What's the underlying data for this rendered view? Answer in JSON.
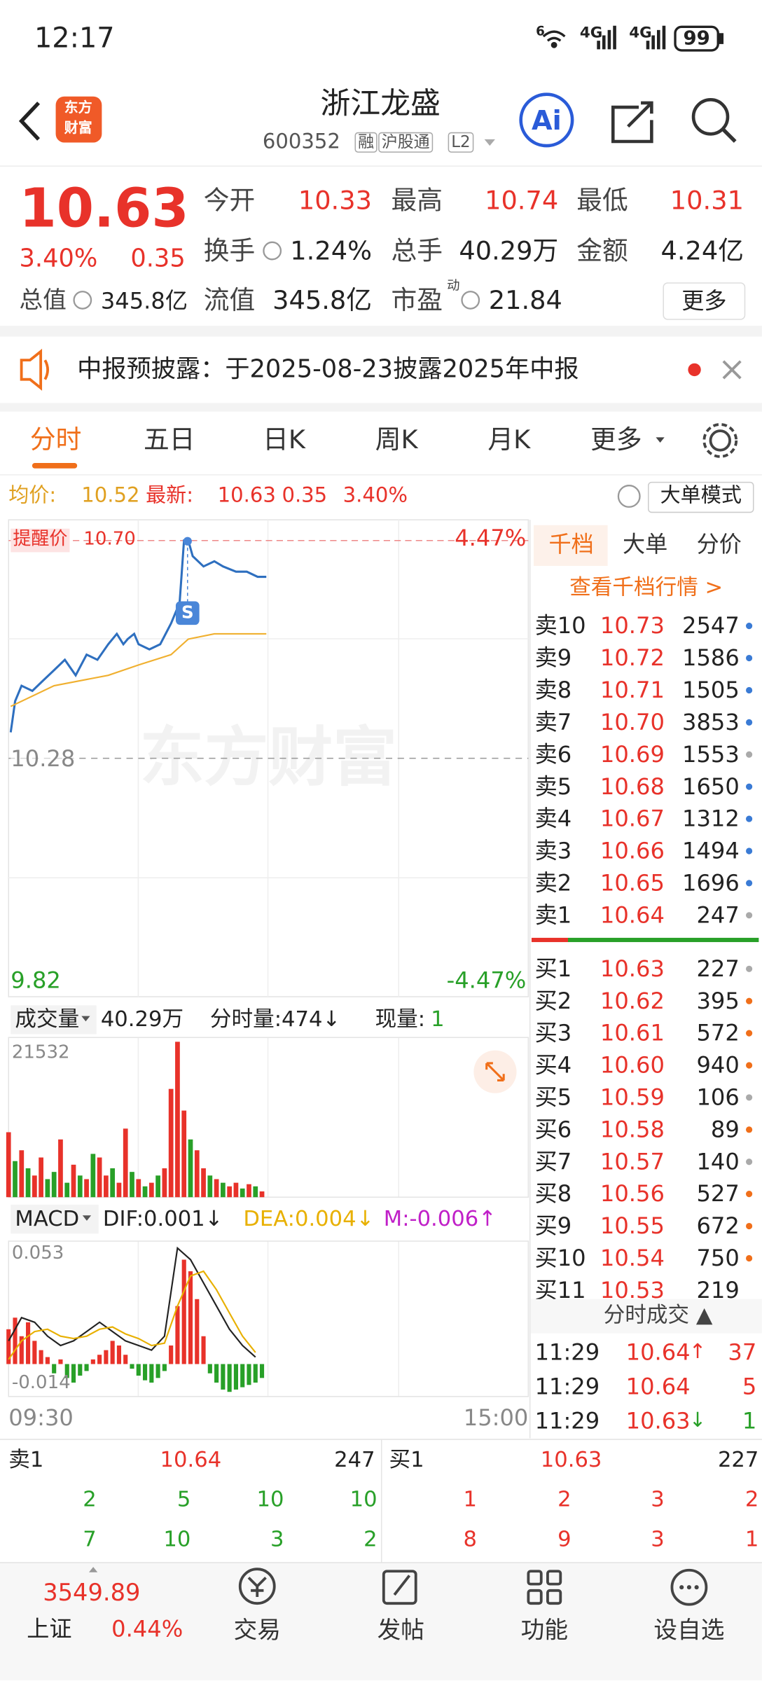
{
  "status": {
    "time": "12:17",
    "signal": [
      "6",
      "4G",
      "4G"
    ],
    "battery": "99"
  },
  "header": {
    "logo": [
      "东方",
      "财富"
    ],
    "title": "浙江龙盛",
    "code": "600352",
    "tags": [
      "融",
      "沪股通",
      "L2"
    ]
  },
  "quote": {
    "price": "10.63",
    "change_pct": "3.40%",
    "change": "0.35",
    "fields": [
      {
        "label": "今开",
        "value": "10.33"
      },
      {
        "label": "最高",
        "value": "10.74"
      },
      {
        "label": "最低",
        "value": "10.31"
      },
      {
        "label": "换手",
        "value": "1.24%"
      },
      {
        "label": "总手",
        "value": "40.29万"
      },
      {
        "label": "金额",
        "value": "4.24亿"
      },
      {
        "label": "总值",
        "value": "345.8亿"
      },
      {
        "label": "流值",
        "value": "345.8亿"
      },
      {
        "label": "市盈",
        "sup": "动",
        "value": "21.84"
      }
    ],
    "more": "更多"
  },
  "notice": "中报预披露：于2025-08-23披露2025年中报",
  "tabs": [
    "分时",
    "五日",
    "日K",
    "周K",
    "月K",
    "更多"
  ],
  "info": {
    "avg_label": "均价:",
    "avg": "10.52",
    "last_label": "最新:",
    "last": "10.63",
    "change": "0.35",
    "change_pct": "3.40%",
    "mode": "大单模式"
  },
  "chart_data": [
    {
      "type": "line",
      "watermark": "东方财富",
      "signal": "S",
      "xlim": [
        0,
        240
      ],
      "xticks": [
        {
          "value": 0,
          "label": "09:30"
        },
        {
          "value": 240,
          "label": "15:00"
        }
      ],
      "ylim": [
        9.82,
        10.74
      ],
      "yticks": [
        9.82,
        10.28
      ],
      "y2lim": [
        -4.47,
        4.47
      ],
      "y2ticks": [
        {
          "value": 4.47,
          "label": "4.47%"
        },
        {
          "value": -4.47,
          "label": "-4.47%"
        }
      ],
      "reminder": {
        "name": "提醒价",
        "value": 10.7,
        "label": "10.70"
      },
      "series": [
        {
          "color": "#2e6fbf",
          "x": [
            1,
            3,
            6,
            11,
            16,
            21,
            26,
            31,
            36,
            41,
            46,
            50,
            53,
            55,
            58,
            60,
            65,
            70,
            75,
            79,
            81,
            83,
            85,
            90,
            95,
            99,
            105,
            110,
            115,
            119
          ],
          "values": [
            10.33,
            10.39,
            10.42,
            10.41,
            10.43,
            10.45,
            10.47,
            10.44,
            10.48,
            10.47,
            10.5,
            10.52,
            10.5,
            10.51,
            10.52,
            10.5,
            10.49,
            10.5,
            10.54,
            10.58,
            10.7,
            10.7,
            10.67,
            10.65,
            10.66,
            10.65,
            10.64,
            10.64,
            10.63,
            10.63
          ]
        },
        {
          "color": "#f0b030",
          "x": [
            1,
            21,
            46,
            60,
            75,
            83,
            95,
            119
          ],
          "values": [
            10.38,
            10.42,
            10.44,
            10.46,
            10.48,
            10.51,
            10.52,
            10.52
          ]
        }
      ]
    },
    {
      "type": "bar",
      "title": "成交量",
      "summary": "40.29万",
      "stat": "分时量:474↓",
      "now_label": "现量:",
      "now": "1",
      "xlim": [
        0,
        240
      ],
      "ylim": [
        0,
        21532
      ],
      "yticks": [
        21532
      ],
      "x": [
        0,
        3,
        6,
        9,
        12,
        15,
        18,
        21,
        24,
        27,
        30,
        33,
        36,
        39,
        42,
        45,
        48,
        51,
        54,
        57,
        60,
        63,
        66,
        69,
        72,
        75,
        78,
        81,
        84,
        87,
        90,
        93,
        96,
        99,
        102,
        105,
        108,
        111,
        114,
        117
      ],
      "values": [
        9000,
        5000,
        6500,
        4000,
        3000,
        5500,
        2500,
        3500,
        8000,
        2000,
        4500,
        3000,
        2500,
        6000,
        5500,
        3000,
        4000,
        2000,
        9500,
        3500,
        2500,
        1500,
        2000,
        3000,
        4000,
        15000,
        21532,
        12000,
        8000,
        6500,
        4000,
        3000,
        2500,
        2000,
        1500,
        2000,
        1200,
        1800,
        1500,
        800
      ],
      "colors": [
        "#e8322a",
        "#28a028",
        "#e8322a",
        "#28a028",
        "#e8322a",
        "#e8322a",
        "#28a028",
        "#28a028",
        "#e8322a",
        "#28a028",
        "#e8322a",
        "#28a028",
        "#e8322a",
        "#28a028",
        "#e8322a",
        "#e8322a",
        "#28a028",
        "#e8322a",
        "#e8322a",
        "#28a028",
        "#e8322a",
        "#28a028",
        "#e8322a",
        "#28a028",
        "#e8322a",
        "#e8322a",
        "#e8322a",
        "#e8322a",
        "#28a028",
        "#e8322a",
        "#e8322a",
        "#28a028",
        "#e8322a",
        "#28a028",
        "#e8322a",
        "#e8322a",
        "#28a028",
        "#e8322a",
        "#28a028",
        "#e8322a"
      ]
    },
    {
      "type": "macd",
      "title": "MACD",
      "stats": [
        {
          "text": "DIF:0.001↓",
          "color": "#222222"
        },
        {
          "text": "DEA:0.004↓",
          "color": "#e8b000"
        },
        {
          "text": "M:-0.006↑",
          "color": "#c020c8"
        }
      ],
      "xlim": [
        0,
        240
      ],
      "ylim": [
        -0.014,
        0.053
      ],
      "yticks": [
        0.053,
        -0.014
      ],
      "up_color": "#e8322a",
      "down_color": "#28a028",
      "x": [
        0,
        3,
        6,
        9,
        12,
        15,
        18,
        21,
        24,
        27,
        30,
        33,
        36,
        39,
        42,
        45,
        48,
        51,
        54,
        57,
        60,
        63,
        66,
        69,
        72,
        75,
        78,
        81,
        84,
        87,
        90,
        93,
        96,
        99,
        102,
        105,
        108,
        111,
        114,
        117
      ],
      "values": [
        0.015,
        0.02,
        0.012,
        0.018,
        0.01,
        0.006,
        0.003,
        -0.004,
        0.002,
        -0.006,
        -0.008,
        -0.005,
        -0.003,
        0.002,
        0.004,
        0.006,
        0.01,
        0.008,
        0.004,
        -0.002,
        -0.005,
        -0.007,
        -0.008,
        -0.006,
        -0.003,
        0.008,
        0.025,
        0.045,
        0.04,
        0.028,
        0.012,
        -0.004,
        -0.008,
        -0.011,
        -0.012,
        -0.011,
        -0.01,
        -0.009,
        -0.008,
        -0.006
      ],
      "series": [
        {
          "color": "#222222",
          "x": [
            0,
            6,
            12,
            18,
            24,
            30,
            36,
            42,
            48,
            54,
            60,
            66,
            72,
            78,
            84,
            90,
            96,
            102,
            108,
            114
          ],
          "values": [
            0.01,
            0.02,
            0.018,
            0.012,
            0.008,
            0.01,
            0.014,
            0.018,
            0.014,
            0.01,
            0.008,
            0.006,
            0.012,
            0.05,
            0.045,
            0.035,
            0.025,
            0.015,
            0.008,
            0.003
          ]
        },
        {
          "color": "#e8b000",
          "x": [
            0,
            6,
            12,
            18,
            24,
            30,
            36,
            42,
            48,
            54,
            60,
            66,
            72,
            78,
            84,
            90,
            96,
            102,
            108,
            114
          ],
          "values": [
            0.002,
            0.01,
            0.014,
            0.015,
            0.012,
            0.011,
            0.012,
            0.015,
            0.016,
            0.013,
            0.011,
            0.008,
            0.009,
            0.025,
            0.038,
            0.04,
            0.032,
            0.022,
            0.012,
            0.005
          ]
        }
      ]
    }
  ],
  "order_book": {
    "tabs": [
      "千档",
      "大单",
      "分价"
    ],
    "link": "查看千档行情 >",
    "asks": [
      {
        "label": "卖10",
        "price": "10.73",
        "volume": "2547",
        "dot": "#3a7bd5"
      },
      {
        "label": "卖9",
        "price": "10.72",
        "volume": "1586",
        "dot": "#3a7bd5"
      },
      {
        "label": "卖8",
        "price": "10.71",
        "volume": "1505",
        "dot": "#3a7bd5"
      },
      {
        "label": "卖7",
        "price": "10.70",
        "volume": "3853",
        "dot": "#3a7bd5"
      },
      {
        "label": "卖6",
        "price": "10.69",
        "volume": "1553",
        "dot": "#aaaaaa"
      },
      {
        "label": "卖5",
        "price": "10.68",
        "volume": "1650",
        "dot": "#3a7bd5"
      },
      {
        "label": "卖4",
        "price": "10.67",
        "volume": "1312",
        "dot": "#3a7bd5"
      },
      {
        "label": "卖3",
        "price": "10.66",
        "volume": "1494",
        "dot": "#3a7bd5"
      },
      {
        "label": "卖2",
        "price": "10.65",
        "volume": "1696",
        "dot": "#3a7bd5"
      },
      {
        "label": "卖1",
        "price": "10.64",
        "volume": "247",
        "dot": "#aaaaaa"
      }
    ],
    "bids": [
      {
        "label": "买1",
        "price": "10.63",
        "volume": "227",
        "dot": "#aaaaaa"
      },
      {
        "label": "买2",
        "price": "10.62",
        "volume": "395",
        "dot": "#f06f1a"
      },
      {
        "label": "买3",
        "price": "10.61",
        "volume": "572",
        "dot": "#f06f1a"
      },
      {
        "label": "买4",
        "price": "10.60",
        "volume": "940",
        "dot": "#f06f1a"
      },
      {
        "label": "买5",
        "price": "10.59",
        "volume": "106",
        "dot": "#aaaaaa"
      },
      {
        "label": "买6",
        "price": "10.58",
        "volume": "89",
        "dot": "#f06f1a"
      },
      {
        "label": "买7",
        "price": "10.57",
        "volume": "140",
        "dot": "#aaaaaa"
      },
      {
        "label": "买8",
        "price": "10.56",
        "volume": "527",
        "dot": "#f06f1a"
      },
      {
        "label": "买9",
        "price": "10.55",
        "volume": "672",
        "dot": "#f06f1a"
      },
      {
        "label": "买10",
        "price": "10.54",
        "volume": "750",
        "dot": "#f06f1a"
      },
      {
        "label": "买11",
        "price": "10.53",
        "volume": "219"
      }
    ]
  },
  "trades": {
    "title": "分时成交 ▲",
    "rows": [
      {
        "time": "11:29",
        "price": "10.64",
        "arrow": "↑",
        "qty": "37",
        "qty_color": "#e8322a"
      },
      {
        "time": "11:29",
        "price": "10.64",
        "qty": "5",
        "qty_color": "#e8322a"
      },
      {
        "time": "11:29",
        "price": "10.63",
        "arrow": "↓",
        "qty": "1",
        "qty_color": "#28a028"
      }
    ]
  },
  "level1": {
    "ask": {
      "label": "卖1",
      "price": "10.64",
      "volume": "247",
      "queue": [
        [
          "2",
          "5",
          "10",
          "10"
        ],
        [
          "7",
          "10",
          "3",
          "2"
        ]
      ]
    },
    "bid": {
      "label": "买1",
      "price": "10.63",
      "volume": "227",
      "queue": [
        [
          "1",
          "2",
          "3",
          "2"
        ],
        [
          "8",
          "9",
          "3",
          "1"
        ]
      ]
    }
  },
  "nav": {
    "index_value": "3549.89",
    "index_name": "上证",
    "index_pct": "0.44%",
    "items": [
      "交易",
      "发帖",
      "功能",
      "设自选"
    ]
  }
}
